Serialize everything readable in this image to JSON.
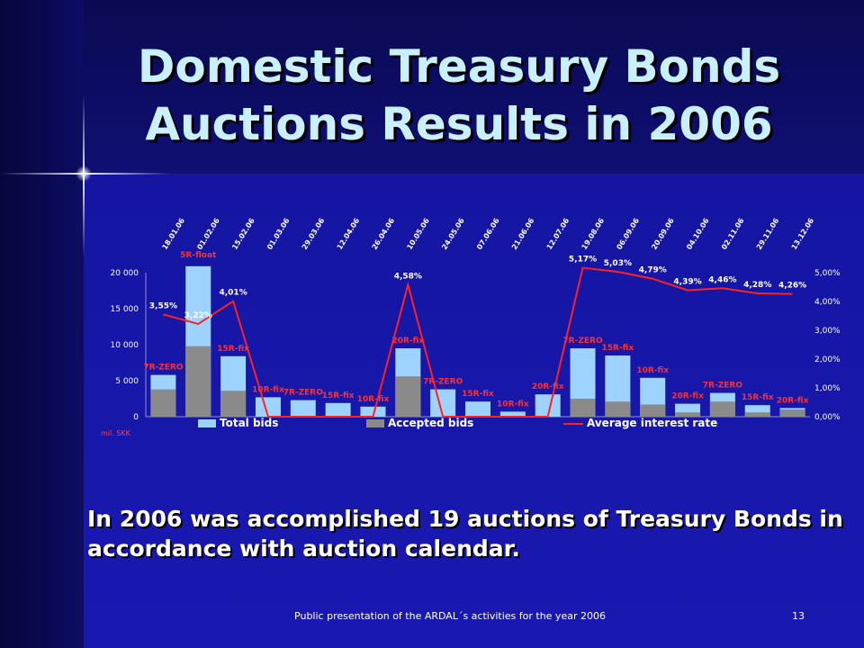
{
  "slide": {
    "title": "Domestic Treasury Bonds Auctions Results in 2006",
    "body": "In 2006 was accomplished 19 auctions of Treasury Bonds in accordance with auction calendar.",
    "footer": "Public presentation  of the ARDAL´s activities for the year 2006",
    "page_number": "13"
  },
  "colors": {
    "total_bids": "#9fd3ff",
    "accepted_bids": "#8a8a8a",
    "interest_line": "#ff2020",
    "bond_label": "#ff3030",
    "text": "#ffffff"
  },
  "chart_data": {
    "type": "bar",
    "categories": [
      "18.01.06",
      "01.02.06",
      "15.02.06",
      "01.03.06",
      "29.03.06",
      "12.04.06",
      "26.04.06",
      "10.05.06",
      "24.05.06",
      "07.06.06",
      "21.06.06",
      "12.07.06",
      "19.08.06",
      "06.09.06",
      "20.09.06",
      "04.10.06",
      "02.11.06",
      "29.11.06",
      "13.12.06"
    ],
    "bond_types": [
      "7R-ZERO",
      "5R-float",
      "15R-fix",
      "10R-fix",
      "7R-ZERO",
      "15R-fix",
      "10R-fix",
      "20R-fix",
      "7R-ZERO",
      "15R-fix",
      "10R-fix",
      "20R-fix",
      "7R-ZERO",
      "15R-fix",
      "10R-fix",
      "20R-fix",
      "7R-ZERO",
      "15R-fix",
      "20R-fix"
    ],
    "series": [
      {
        "name": "Total bids",
        "values": [
          5800,
          20900,
          8400,
          2700,
          2300,
          1900,
          1400,
          9500,
          3800,
          2100,
          700,
          3100,
          9500,
          8500,
          5400,
          1800,
          3300,
          1600,
          1200
        ]
      },
      {
        "name": "Accepted bids",
        "values": [
          3800,
          9800,
          3600,
          0,
          0,
          0,
          0,
          5600,
          0,
          0,
          0,
          0,
          2500,
          2100,
          1700,
          600,
          2100,
          600,
          1000
        ]
      },
      {
        "name": "Average interest rate",
        "axis": "right",
        "values": [
          3.55,
          3.22,
          4.01,
          0,
          0,
          0,
          0,
          4.58,
          0,
          0,
          0,
          0,
          5.17,
          5.03,
          4.79,
          4.39,
          4.46,
          4.28,
          4.26
        ]
      }
    ],
    "rate_labels": [
      "3,55%",
      "3,22%",
      "4,01%",
      "",
      "",
      "",
      "",
      "4,58%",
      "",
      "",
      "",
      "",
      "5,17%",
      "5,03%",
      "4,79%",
      "4,39%",
      "4,46%",
      "4,28%",
      "4,26%"
    ],
    "ylim_left": [
      0,
      20000
    ],
    "ylim_right": [
      0,
      5
    ],
    "yticks_left": [
      "0",
      "5 000",
      "10 000",
      "15 000",
      "20 000"
    ],
    "yticks_right": [
      "0,00%",
      "1,00%",
      "2,00%",
      "3,00%",
      "4,00%",
      "5,00%"
    ],
    "unit_label": "mil. SKK",
    "legend": [
      "Total bids",
      "Accepted bids",
      "Average interest rate"
    ],
    "legend_position": "bottom"
  }
}
